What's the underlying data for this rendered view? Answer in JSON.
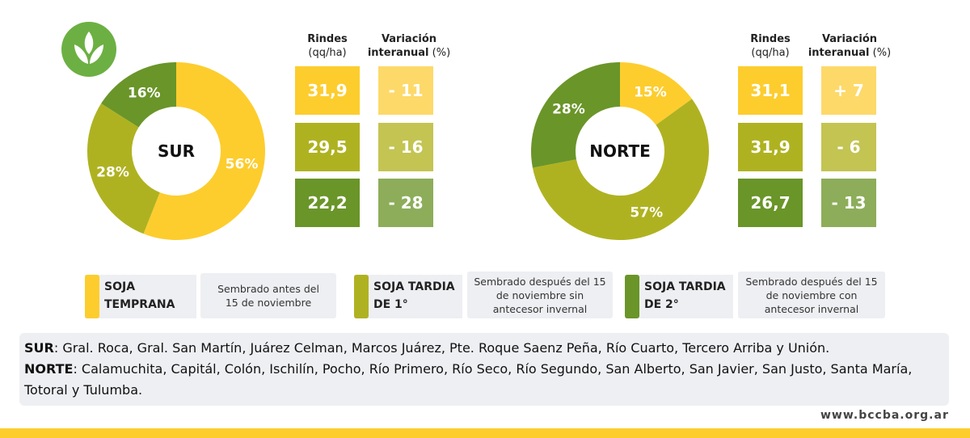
{
  "colors": {
    "temprana": "#FDCD2E",
    "tardia1": "#AFB220",
    "tardia2": "#6A9529",
    "var_temprana": "#FDD96A",
    "var_tardia1": "#C3C452",
    "var_tardia2": "#8DAD5A",
    "logo": "#6CB043",
    "footer_bar": "#FDCD2E"
  },
  "headers": {
    "rindes": "Rindes",
    "rindes_unit": "(qq/ha)",
    "variacion": "Variación",
    "interanual": "interanual",
    "variacion_unit": "(%)"
  },
  "sur": {
    "label": "SUR",
    "shares": [
      {
        "value": 56,
        "label": "56%"
      },
      {
        "value": 28,
        "label": "28%"
      },
      {
        "value": 16,
        "label": "16%"
      }
    ],
    "rindes": [
      "31,9",
      "29,5",
      "22,2"
    ],
    "variacion": [
      "- 11",
      "- 16",
      "- 28"
    ]
  },
  "norte": {
    "label": "NORTE",
    "shares": [
      {
        "value": 15,
        "label": "15%"
      },
      {
        "value": 57,
        "label": "57%"
      },
      {
        "value": 28,
        "label": "28%"
      }
    ],
    "rindes": [
      "31,1",
      "31,9",
      "26,7"
    ],
    "variacion": [
      "+ 7",
      "- 6",
      "- 13"
    ]
  },
  "legend": [
    {
      "title1": "SOJA",
      "title2": "TEMPRANA",
      "desc": "Sembrado antes del 15 de noviembre"
    },
    {
      "title1": "SOJA TARDIA",
      "title2": "DE 1°",
      "desc": "Sembrado después del 15 de noviembre sin antecesor invernal"
    },
    {
      "title1": "SOJA TARDIA",
      "title2": "DE 2°",
      "desc": "Sembrado después del 15 de noviembre con antecesor invernal"
    }
  ],
  "regions": {
    "sur_label": "SUR",
    "sur_text": ": Gral. Roca, Gral. San Martín, Juárez Celman, Marcos Juárez, Pte. Roque Saenz Peña, Río Cuarto, Tercero Arriba y Unión.",
    "norte_label": "NORTE",
    "norte_text": ": Calamuchita, Capitál, Colón, Ischilín, Pocho, Río Primero, Río Seco, Río Segundo, San Alberto, San Javier, San Justo, Santa María, Totoral y Tulumba."
  },
  "footer": {
    "url": "www.bccba.org.ar"
  }
}
